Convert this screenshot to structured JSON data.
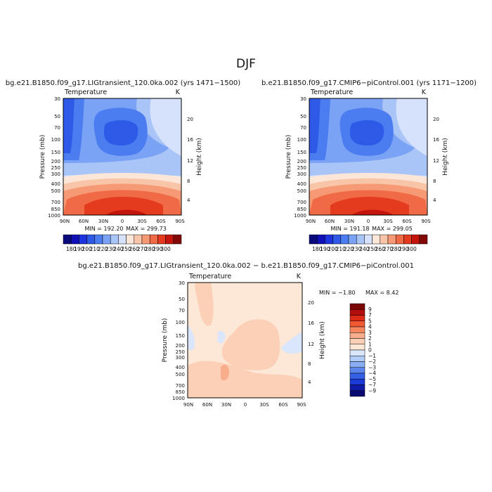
{
  "figure": {
    "title": "DJF",
    "diff_title": "bg.e21.B1850.f09_g17.LIGtransient_120.0ka.002 − b.e21.B1850.f09_g17.CMIP6−piControl.001"
  },
  "chart_data": [
    {
      "type": "heatmap",
      "title": "bg.e21.B1850.f09_g17.LIGtransient_120.0ka.002 (yrs 1471−1500)",
      "subtitle_left": "Temperature",
      "subtitle_right": "K",
      "xlabel": "",
      "ylabel": "Pressure (mb)",
      "ylabel_right": "Height (km)",
      "x_ticks": [
        "90N",
        "60N",
        "30N",
        "0",
        "30S",
        "60S",
        "90S"
      ],
      "y_ticks": [
        "30",
        "50",
        "70",
        "100",
        "150",
        "200",
        "250",
        "300",
        "400",
        "500",
        "700",
        "850",
        "1000"
      ],
      "y_right_ticks": [
        "20",
        "16",
        "12",
        "8",
        "4"
      ],
      "min_label": "MIN = 192.20",
      "max_label": "MAX = 299.73",
      "min": 192.2,
      "max": 299.73,
      "colorbar": {
        "orientation": "horizontal",
        "labels": [
          "180",
          "190",
          "200",
          "210",
          "220",
          "230",
          "240",
          "250",
          "260",
          "270",
          "280",
          "290",
          "300"
        ],
        "colors": [
          "#0a0a7a",
          "#1010b8",
          "#1d34df",
          "#2f5ae8",
          "#4b7cf0",
          "#7aa2f5",
          "#a9c4f7",
          "#d6e2fb",
          "#fbe6d8",
          "#f8c5a8",
          "#f59a75",
          "#f06a45",
          "#e43a1e",
          "#c4150c",
          "#820808"
        ]
      }
    },
    {
      "type": "heatmap",
      "title": "b.e21.B1850.f09_g17.CMIP6−piControl.001 (yrs 1171−1200)",
      "subtitle_left": "Temperature",
      "subtitle_right": "K",
      "xlabel": "",
      "ylabel": "Pressure (mb)",
      "ylabel_right": "Height (km)",
      "x_ticks": [
        "90N",
        "60N",
        "30N",
        "0",
        "30S",
        "60S",
        "90S"
      ],
      "y_ticks": [
        "30",
        "50",
        "70",
        "100",
        "150",
        "200",
        "250",
        "300",
        "400",
        "500",
        "700",
        "850",
        "1000"
      ],
      "y_right_ticks": [
        "20",
        "16",
        "12",
        "8",
        "4"
      ],
      "min_label": "MIN = 191.18",
      "max_label": "MAX = 299.05",
      "min": 191.18,
      "max": 299.05,
      "colorbar": {
        "orientation": "horizontal",
        "labels": [
          "180",
          "190",
          "200",
          "210",
          "220",
          "230",
          "240",
          "250",
          "260",
          "270",
          "280",
          "290",
          "300"
        ],
        "colors": [
          "#0a0a7a",
          "#1010b8",
          "#1d34df",
          "#2f5ae8",
          "#4b7cf0",
          "#7aa2f5",
          "#a9c4f7",
          "#d6e2fb",
          "#fbe6d8",
          "#f8c5a8",
          "#f59a75",
          "#f06a45",
          "#e43a1e",
          "#c4150c",
          "#820808"
        ]
      }
    },
    {
      "type": "heatmap",
      "title": "",
      "subtitle_left": "Temperature",
      "subtitle_right": "K",
      "xlabel": "",
      "ylabel": "Pressure (mb)",
      "ylabel_right": "Height (km)",
      "x_ticks": [
        "90N",
        "60N",
        "30N",
        "0",
        "30S",
        "60S",
        "90S"
      ],
      "y_ticks": [
        "30",
        "50",
        "70",
        "100",
        "150",
        "200",
        "250",
        "300",
        "400",
        "500",
        "700",
        "850",
        "1000"
      ],
      "y_right_ticks": [
        "20",
        "16",
        "12",
        "8",
        "4"
      ],
      "min_label": "MIN = −1.80",
      "max_label": "MAX = 8.42",
      "min": -1.8,
      "max": 8.42,
      "colorbar": {
        "orientation": "vertical",
        "labels": [
          "9",
          "7",
          "5",
          "4",
          "3",
          "2",
          "1",
          "0",
          "−1",
          "−2",
          "−3",
          "−4",
          "−5",
          "−7",
          "−9"
        ],
        "colors": [
          "#7a0505",
          "#b40d0d",
          "#dc2a16",
          "#ef5a33",
          "#f5865e",
          "#f8ae8c",
          "#fbd0b7",
          "#fde7d6",
          "#d9e6fb",
          "#b1cbf7",
          "#89adf2",
          "#5d86ec",
          "#3461e4",
          "#1b3ad6",
          "#0f1ba6",
          "#080a70"
        ]
      }
    }
  ]
}
